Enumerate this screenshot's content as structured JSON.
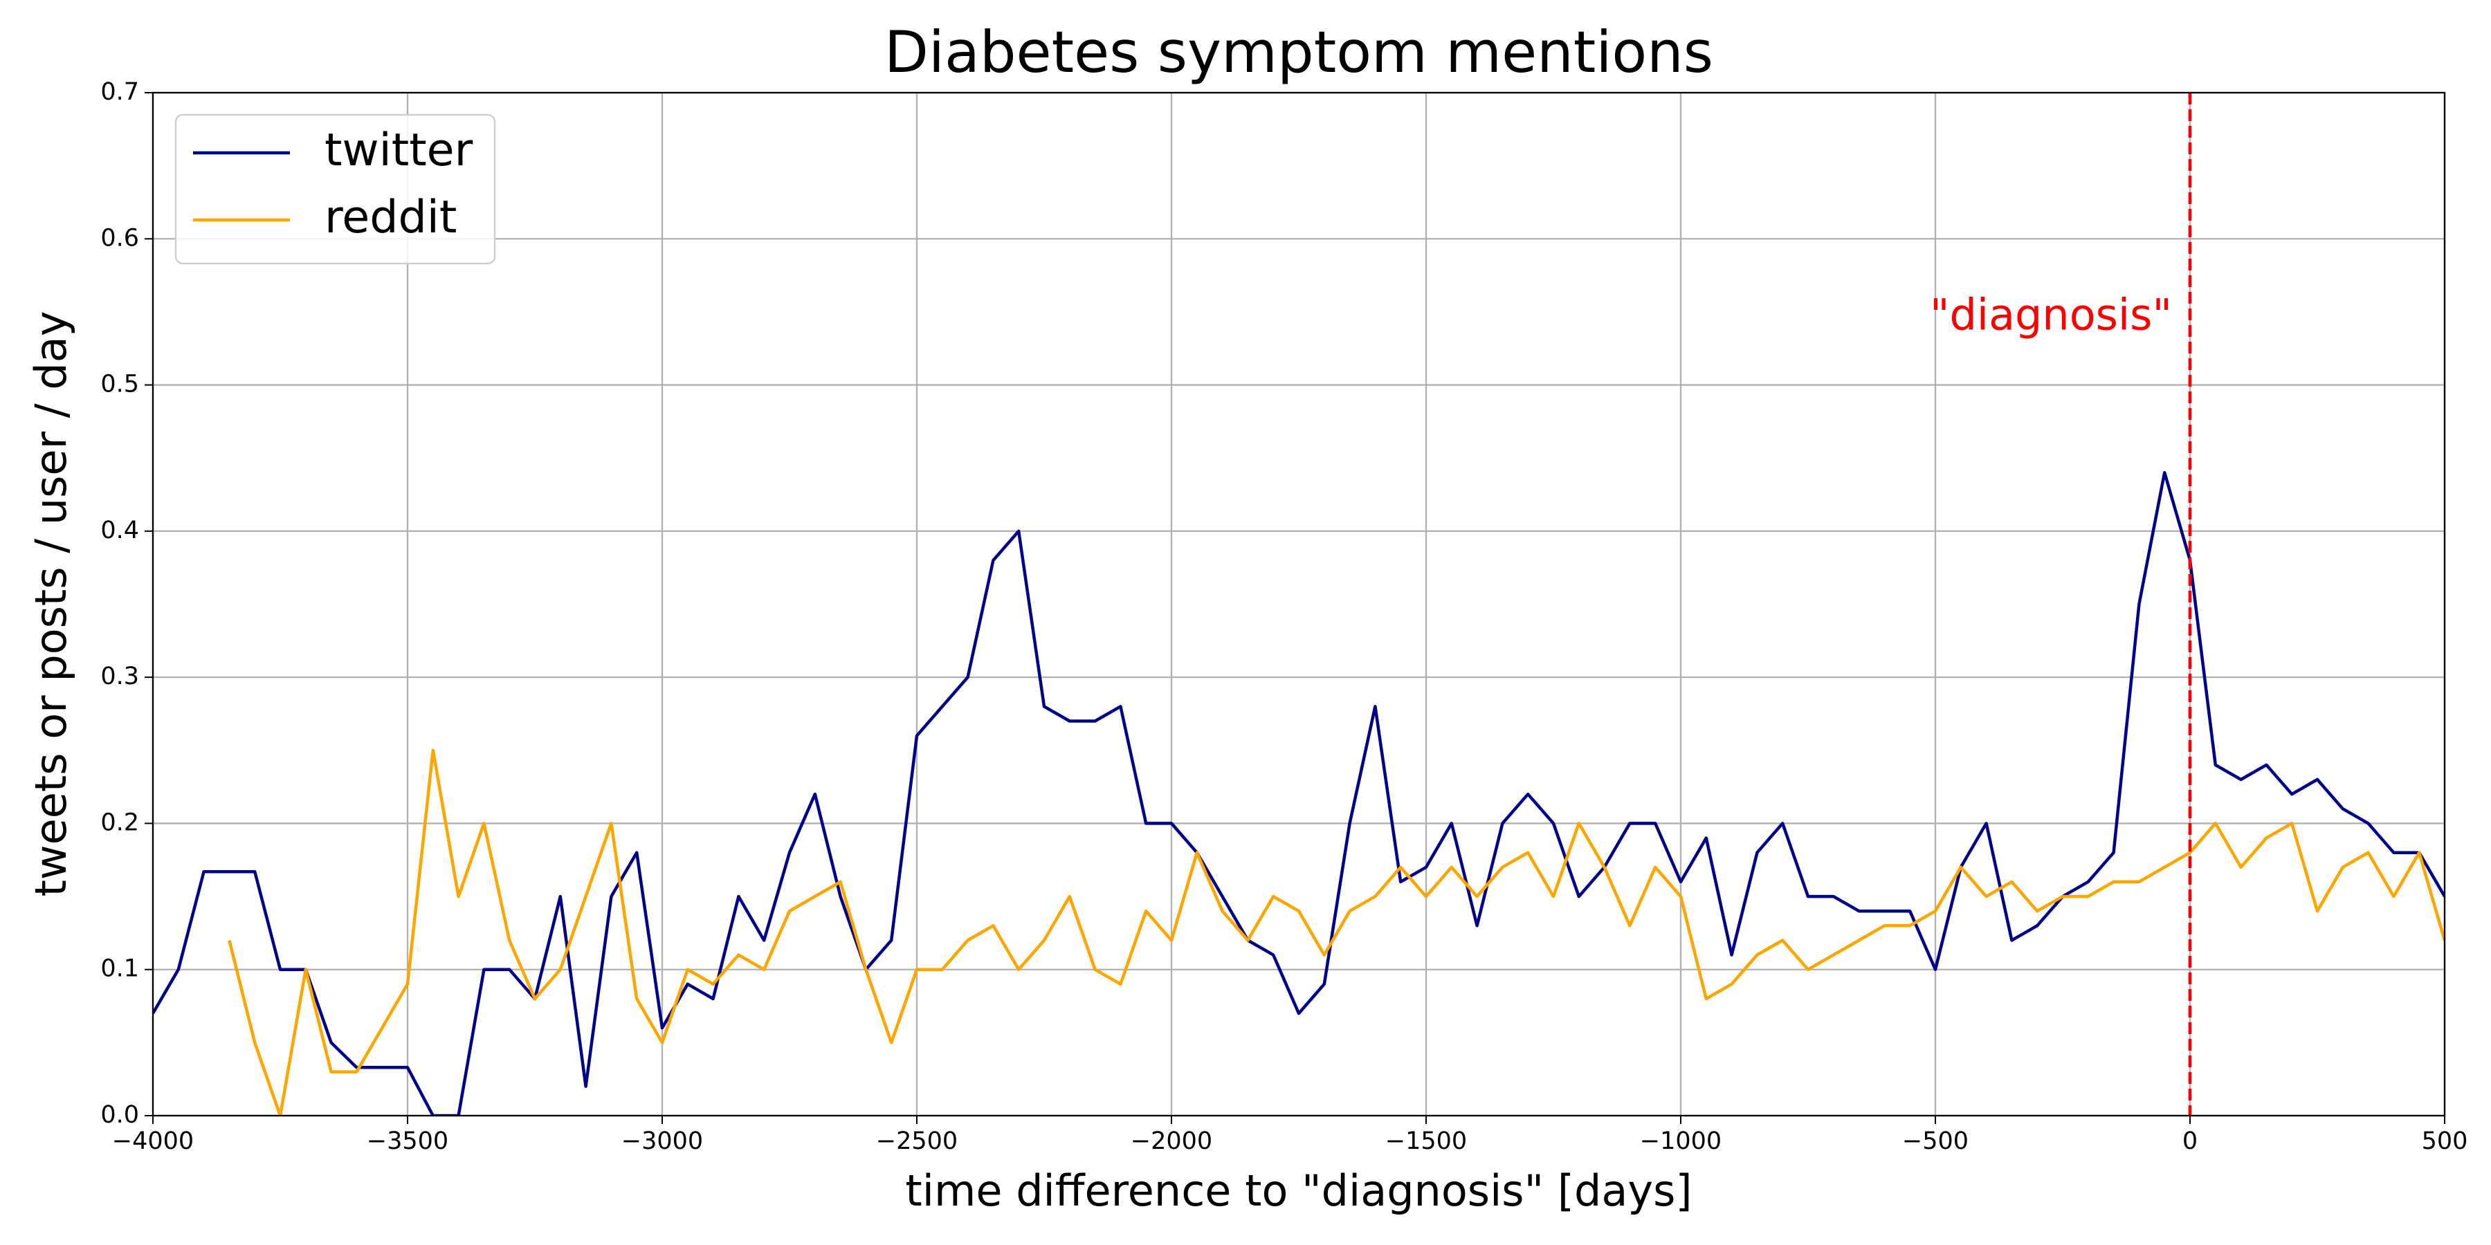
{
  "chart_data": {
    "type": "line",
    "title": "Diabetes symptom mentions",
    "x_label": "time difference to \"diagnosis\" [days]",
    "y_label": "tweets or posts / user / day",
    "x": [
      -4000,
      -3950,
      -3900,
      -3850,
      -3800,
      -3750,
      -3700,
      -3650,
      -3600,
      -3550,
      -3500,
      -3450,
      -3400,
      -3350,
      -3300,
      -3250,
      -3200,
      -3150,
      -3100,
      -3050,
      -3000,
      -2950,
      -2900,
      -2850,
      -2800,
      -2750,
      -2700,
      -2650,
      -2600,
      -2550,
      -2500,
      -2450,
      -2400,
      -2350,
      -2300,
      -2250,
      -2200,
      -2150,
      -2100,
      -2050,
      -2000,
      -1950,
      -1900,
      -1850,
      -1800,
      -1750,
      -1700,
      -1650,
      -1600,
      -1550,
      -1500,
      -1450,
      -1400,
      -1350,
      -1300,
      -1250,
      -1200,
      -1150,
      -1100,
      -1050,
      -1000,
      -950,
      -900,
      -850,
      -800,
      -750,
      -700,
      -650,
      -600,
      -550,
      -500,
      -450,
      -400,
      -350,
      -300,
      -250,
      -200,
      -150,
      -100,
      -50,
      0,
      50,
      100,
      150,
      200,
      250,
      300,
      350,
      400,
      450,
      500
    ],
    "series": [
      {
        "name": "twitter",
        "color": "#00008b",
        "values": [
          0.07,
          0.1,
          0.167,
          0.167,
          0.167,
          0.1,
          0.1,
          0.05,
          0.033,
          0.033,
          0.033,
          0.0,
          0.0,
          0.1,
          0.1,
          0.08,
          0.15,
          0.02,
          0.15,
          0.18,
          0.06,
          0.09,
          0.08,
          0.15,
          0.12,
          0.18,
          0.22,
          0.15,
          0.1,
          0.12,
          0.26,
          0.28,
          0.3,
          0.38,
          0.4,
          0.28,
          0.27,
          0.27,
          0.28,
          0.2,
          0.2,
          0.18,
          0.15,
          0.12,
          0.11,
          0.07,
          0.09,
          0.2,
          0.28,
          0.16,
          0.17,
          0.2,
          0.13,
          0.2,
          0.22,
          0.2,
          0.15,
          0.17,
          0.2,
          0.2,
          0.16,
          0.19,
          0.11,
          0.18,
          0.2,
          0.15,
          0.15,
          0.14,
          0.14,
          0.14,
          0.1,
          0.17,
          0.2,
          0.12,
          0.13,
          0.15,
          0.16,
          0.18,
          0.35,
          0.44,
          0.38,
          0.24,
          0.23,
          0.24,
          0.22,
          0.23,
          0.21,
          0.2,
          0.18,
          0.18,
          0.15
        ]
      },
      {
        "name": "reddit",
        "color": "#ffa500",
        "values": [
          null,
          null,
          null,
          0.12,
          0.05,
          0.0,
          0.1,
          0.03,
          0.03,
          0.06,
          0.09,
          0.25,
          0.15,
          0.2,
          0.12,
          0.08,
          0.1,
          0.15,
          0.2,
          0.08,
          0.05,
          0.1,
          0.09,
          0.11,
          0.1,
          0.14,
          0.15,
          0.16,
          0.1,
          0.05,
          0.1,
          0.1,
          0.12,
          0.13,
          0.1,
          0.12,
          0.15,
          0.1,
          0.09,
          0.14,
          0.12,
          0.18,
          0.14,
          0.12,
          0.15,
          0.14,
          0.11,
          0.14,
          0.15,
          0.17,
          0.15,
          0.17,
          0.15,
          0.17,
          0.18,
          0.15,
          0.2,
          0.17,
          0.13,
          0.17,
          0.15,
          0.08,
          0.09,
          0.11,
          0.12,
          0.1,
          0.11,
          0.12,
          0.13,
          0.13,
          0.14,
          0.17,
          0.15,
          0.16,
          0.14,
          0.15,
          0.15,
          0.16,
          0.16,
          0.17,
          0.18,
          0.2,
          0.17,
          0.19,
          0.2,
          0.14,
          0.17,
          0.18,
          0.15,
          0.18,
          0.12
        ]
      }
    ],
    "xlim": [
      -4000,
      500
    ],
    "xticks": [
      {
        "value": -4000,
        "label": "−4000"
      },
      {
        "value": -3500,
        "label": "−3500"
      },
      {
        "value": -3000,
        "label": "−3000"
      },
      {
        "value": -2500,
        "label": "−2500"
      },
      {
        "value": -2000,
        "label": "−2000"
      },
      {
        "value": -1500,
        "label": "−1500"
      },
      {
        "value": -1000,
        "label": "−1000"
      },
      {
        "value": -500,
        "label": "−500"
      },
      0,
      500
    ],
    "ylim": [
      0,
      0.7
    ],
    "yticks": [
      {
        "value": 0,
        "label": "0.0"
      },
      0.1,
      0.2,
      0.3,
      0.4,
      0.5,
      0.6,
      0.7
    ],
    "grid": true,
    "legend": "upper left",
    "vline": {
      "x": 0,
      "color": "#ff0000",
      "label": "\"diagnosis\""
    }
  }
}
